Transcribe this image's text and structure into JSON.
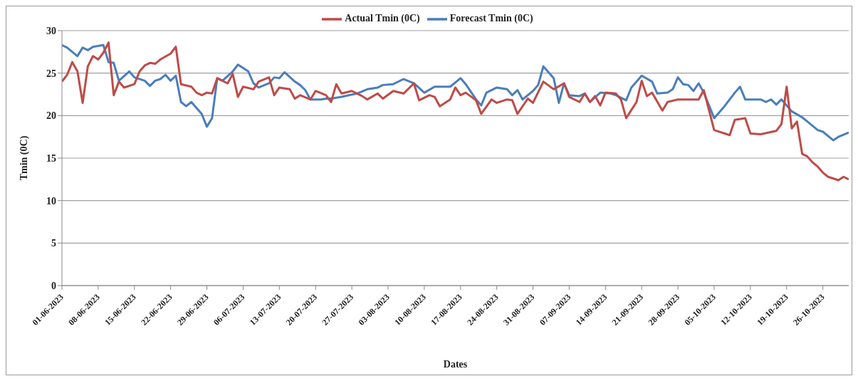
{
  "chart_data": {
    "type": "line",
    "xlabel": "Dates",
    "ylabel": "Tmin (0C)",
    "xlim": [
      "2023-06-01",
      "2023-10-31"
    ],
    "xticks": [
      {
        "value": "2023-06-01",
        "label": "01-06-2023"
      },
      {
        "value": "2023-06-08",
        "label": "08-06-2023"
      },
      {
        "value": "2023-06-15",
        "label": "15-06-2023"
      },
      {
        "value": "2023-06-22",
        "label": "22-06-2023"
      },
      {
        "value": "2023-06-29",
        "label": "29-06-2023"
      },
      {
        "value": "2023-07-06",
        "label": "06-07-2023"
      },
      {
        "value": "2023-07-13",
        "label": "13-07-2023"
      },
      {
        "value": "2023-07-20",
        "label": "20-07-2023"
      },
      {
        "value": "2023-07-27",
        "label": "27-07-2023"
      },
      {
        "value": "2023-08-03",
        "label": "03-08-2023"
      },
      {
        "value": "2023-08-10",
        "label": "10-08-2023"
      },
      {
        "value": "2023-08-17",
        "label": "17-08-2023"
      },
      {
        "value": "2023-08-24",
        "label": "24-08-2023"
      },
      {
        "value": "2023-08-31",
        "label": "31-08-2023"
      },
      {
        "value": "2023-09-07",
        "label": "07-09-2023"
      },
      {
        "value": "2023-09-14",
        "label": "14-09-2023"
      },
      {
        "value": "2023-09-21",
        "label": "21-09-2023"
      },
      {
        "value": "2023-09-28",
        "label": "28-09-2023"
      },
      {
        "value": "2023-10-05",
        "label": "05-10-2023"
      },
      {
        "value": "2023-10-12",
        "label": "12-10-2023"
      },
      {
        "value": "2023-10-19",
        "label": "19-10-2023"
      },
      {
        "value": "2023-10-26",
        "label": "26-10-2023"
      }
    ],
    "ylim": [
      0,
      30
    ],
    "yticks": [
      0,
      5,
      10,
      15,
      20,
      25,
      30
    ],
    "grid": "y",
    "legend": "top",
    "series": [
      {
        "name": "Forecast Tmin (0C)",
        "color": "#4a7ebb",
        "x": [
          "2023-06-01",
          "2023-06-02",
          "2023-06-04",
          "2023-06-05",
          "2023-06-06",
          "2023-06-07",
          "2023-06-09",
          "2023-06-10",
          "2023-06-11",
          "2023-06-12",
          "2023-06-14",
          "2023-06-15",
          "2023-06-17",
          "2023-06-18",
          "2023-06-19",
          "2023-06-20",
          "2023-06-21",
          "2023-06-22",
          "2023-06-23",
          "2023-06-24",
          "2023-06-25",
          "2023-06-26",
          "2023-06-28",
          "2023-06-29",
          "2023-06-30",
          "2023-07-01",
          "2023-07-02",
          "2023-07-04",
          "2023-07-05",
          "2023-07-07",
          "2023-07-08",
          "2023-07-09",
          "2023-07-11",
          "2023-07-12",
          "2023-07-13",
          "2023-07-14",
          "2023-07-16",
          "2023-07-17",
          "2023-07-18",
          "2023-07-19",
          "2023-07-21",
          "2023-07-22",
          "2023-07-23",
          "2023-07-25",
          "2023-07-28",
          "2023-07-30",
          "2023-08-01",
          "2023-08-02",
          "2023-08-04",
          "2023-08-06",
          "2023-08-08",
          "2023-08-10",
          "2023-08-12",
          "2023-08-15",
          "2023-08-17",
          "2023-08-18",
          "2023-08-20",
          "2023-08-21",
          "2023-08-22",
          "2023-08-24",
          "2023-08-26",
          "2023-08-27",
          "2023-08-28",
          "2023-08-29",
          "2023-08-31",
          "2023-09-01",
          "2023-09-02",
          "2023-09-04",
          "2023-09-05",
          "2023-09-06",
          "2023-09-07",
          "2023-09-09",
          "2023-09-10",
          "2023-09-11",
          "2023-09-13",
          "2023-09-15",
          "2023-09-16",
          "2023-09-18",
          "2023-09-19",
          "2023-09-21",
          "2023-09-23",
          "2023-09-24",
          "2023-09-26",
          "2023-09-27",
          "2023-09-28",
          "2023-09-29",
          "2023-09-30",
          "2023-10-01",
          "2023-10-02",
          "2023-10-03",
          "2023-10-05",
          "2023-10-07",
          "2023-10-09",
          "2023-10-10",
          "2023-10-11",
          "2023-10-14",
          "2023-10-15",
          "2023-10-16",
          "2023-10-17",
          "2023-10-18",
          "2023-10-20",
          "2023-10-22",
          "2023-10-23",
          "2023-10-25",
          "2023-10-26",
          "2023-10-28",
          "2023-10-29",
          "2023-10-31"
        ],
        "values": [
          28.3,
          28.0,
          27.0,
          28.0,
          27.7,
          28.1,
          28.3,
          26.3,
          26.2,
          24.1,
          25.2,
          24.5,
          24.1,
          23.5,
          24.1,
          24.3,
          24.8,
          24.1,
          24.7,
          21.6,
          21.1,
          21.6,
          20.2,
          18.7,
          19.7,
          24.4,
          24.1,
          25.2,
          26.0,
          25.2,
          23.8,
          23.3,
          23.8,
          24.5,
          24.4,
          25.1,
          24.0,
          23.6,
          23.0,
          21.9,
          21.9,
          22.0,
          22.0,
          22.2,
          22.6,
          23.1,
          23.3,
          23.6,
          23.7,
          24.3,
          23.8,
          22.7,
          23.4,
          23.4,
          24.4,
          23.7,
          21.9,
          21.2,
          22.7,
          23.3,
          23.1,
          22.4,
          23.0,
          21.9,
          22.9,
          23.6,
          25.8,
          24.4,
          21.5,
          23.8,
          22.4,
          22.3,
          22.6,
          21.6,
          22.7,
          22.6,
          22.4,
          21.8,
          23.3,
          24.7,
          24.0,
          22.6,
          22.7,
          23.1,
          24.5,
          23.7,
          23.6,
          22.9,
          23.8,
          22.7,
          19.7,
          21.1,
          22.7,
          23.4,
          21.9,
          21.9,
          21.6,
          21.9,
          21.3,
          21.9,
          20.5,
          19.8,
          19.3,
          18.3,
          18.1,
          17.1,
          17.5,
          18.0
        ]
      },
      {
        "name": "Actual Tmin (0C)",
        "color": "#be4b48",
        "x": [
          "2023-06-01",
          "2023-06-02",
          "2023-06-03",
          "2023-06-04",
          "2023-06-05",
          "2023-06-06",
          "2023-06-07",
          "2023-06-08",
          "2023-06-09",
          "2023-06-10",
          "2023-06-11",
          "2023-06-12",
          "2023-06-13",
          "2023-06-15",
          "2023-06-16",
          "2023-06-17",
          "2023-06-18",
          "2023-06-19",
          "2023-06-20",
          "2023-06-22",
          "2023-06-23",
          "2023-06-24",
          "2023-06-26",
          "2023-06-27",
          "2023-06-28",
          "2023-06-29",
          "2023-06-30",
          "2023-07-01",
          "2023-07-03",
          "2023-07-04",
          "2023-07-05",
          "2023-07-06",
          "2023-07-08",
          "2023-07-09",
          "2023-07-11",
          "2023-07-12",
          "2023-07-13",
          "2023-07-15",
          "2023-07-16",
          "2023-07-17",
          "2023-07-19",
          "2023-07-20",
          "2023-07-22",
          "2023-07-23",
          "2023-07-24",
          "2023-07-25",
          "2023-07-27",
          "2023-07-29",
          "2023-07-30",
          "2023-08-01",
          "2023-08-02",
          "2023-08-04",
          "2023-08-06",
          "2023-08-08",
          "2023-08-09",
          "2023-08-11",
          "2023-08-12",
          "2023-08-13",
          "2023-08-15",
          "2023-08-16",
          "2023-08-17",
          "2023-08-18",
          "2023-08-20",
          "2023-08-21",
          "2023-08-23",
          "2023-08-24",
          "2023-08-26",
          "2023-08-27",
          "2023-08-28",
          "2023-08-30",
          "2023-08-31",
          "2023-09-02",
          "2023-09-04",
          "2023-09-06",
          "2023-09-07",
          "2023-09-09",
          "2023-09-10",
          "2023-09-11",
          "2023-09-12",
          "2023-09-13",
          "2023-09-14",
          "2023-09-16",
          "2023-09-17",
          "2023-09-18",
          "2023-09-20",
          "2023-09-21",
          "2023-09-22",
          "2023-09-23",
          "2023-09-25",
          "2023-09-26",
          "2023-09-28",
          "2023-09-30",
          "2023-10-02",
          "2023-10-03",
          "2023-10-05",
          "2023-10-08",
          "2023-10-09",
          "2023-10-11",
          "2023-10-12",
          "2023-10-14",
          "2023-10-17",
          "2023-10-18",
          "2023-10-19",
          "2023-10-20",
          "2023-10-21",
          "2023-10-22",
          "2023-10-23",
          "2023-10-24",
          "2023-10-25",
          "2023-10-26",
          "2023-10-27",
          "2023-10-29",
          "2023-10-30",
          "2023-10-31"
        ],
        "values": [
          24.0,
          24.8,
          26.3,
          25.2,
          21.5,
          25.8,
          27.0,
          26.6,
          27.4,
          28.6,
          22.4,
          24.0,
          23.3,
          23.7,
          25.2,
          25.9,
          26.2,
          26.1,
          26.6,
          27.3,
          28.1,
          23.7,
          23.4,
          22.7,
          22.4,
          22.7,
          22.6,
          24.4,
          23.8,
          24.9,
          22.2,
          23.4,
          23.1,
          24.0,
          24.5,
          22.4,
          23.3,
          23.1,
          22.0,
          22.4,
          21.9,
          22.9,
          22.4,
          21.6,
          23.7,
          22.6,
          22.9,
          22.3,
          21.9,
          22.6,
          22.0,
          22.9,
          22.6,
          23.8,
          21.8,
          22.4,
          22.2,
          21.1,
          21.9,
          23.3,
          22.4,
          22.7,
          21.8,
          20.2,
          21.9,
          21.5,
          21.9,
          21.8,
          20.2,
          22.0,
          21.5,
          24.0,
          23.1,
          23.8,
          22.2,
          21.6,
          22.6,
          21.6,
          22.3,
          21.2,
          22.7,
          22.6,
          21.9,
          19.7,
          21.6,
          24.1,
          22.3,
          22.7,
          20.6,
          21.6,
          21.9,
          21.9,
          21.9,
          23.0,
          18.3,
          17.7,
          19.5,
          19.7,
          17.9,
          17.8,
          18.2,
          19.0,
          23.4,
          18.5,
          19.3,
          15.5,
          15.2,
          14.5,
          14.0,
          13.3,
          12.8,
          12.4,
          12.8,
          12.5
        ]
      }
    ]
  }
}
